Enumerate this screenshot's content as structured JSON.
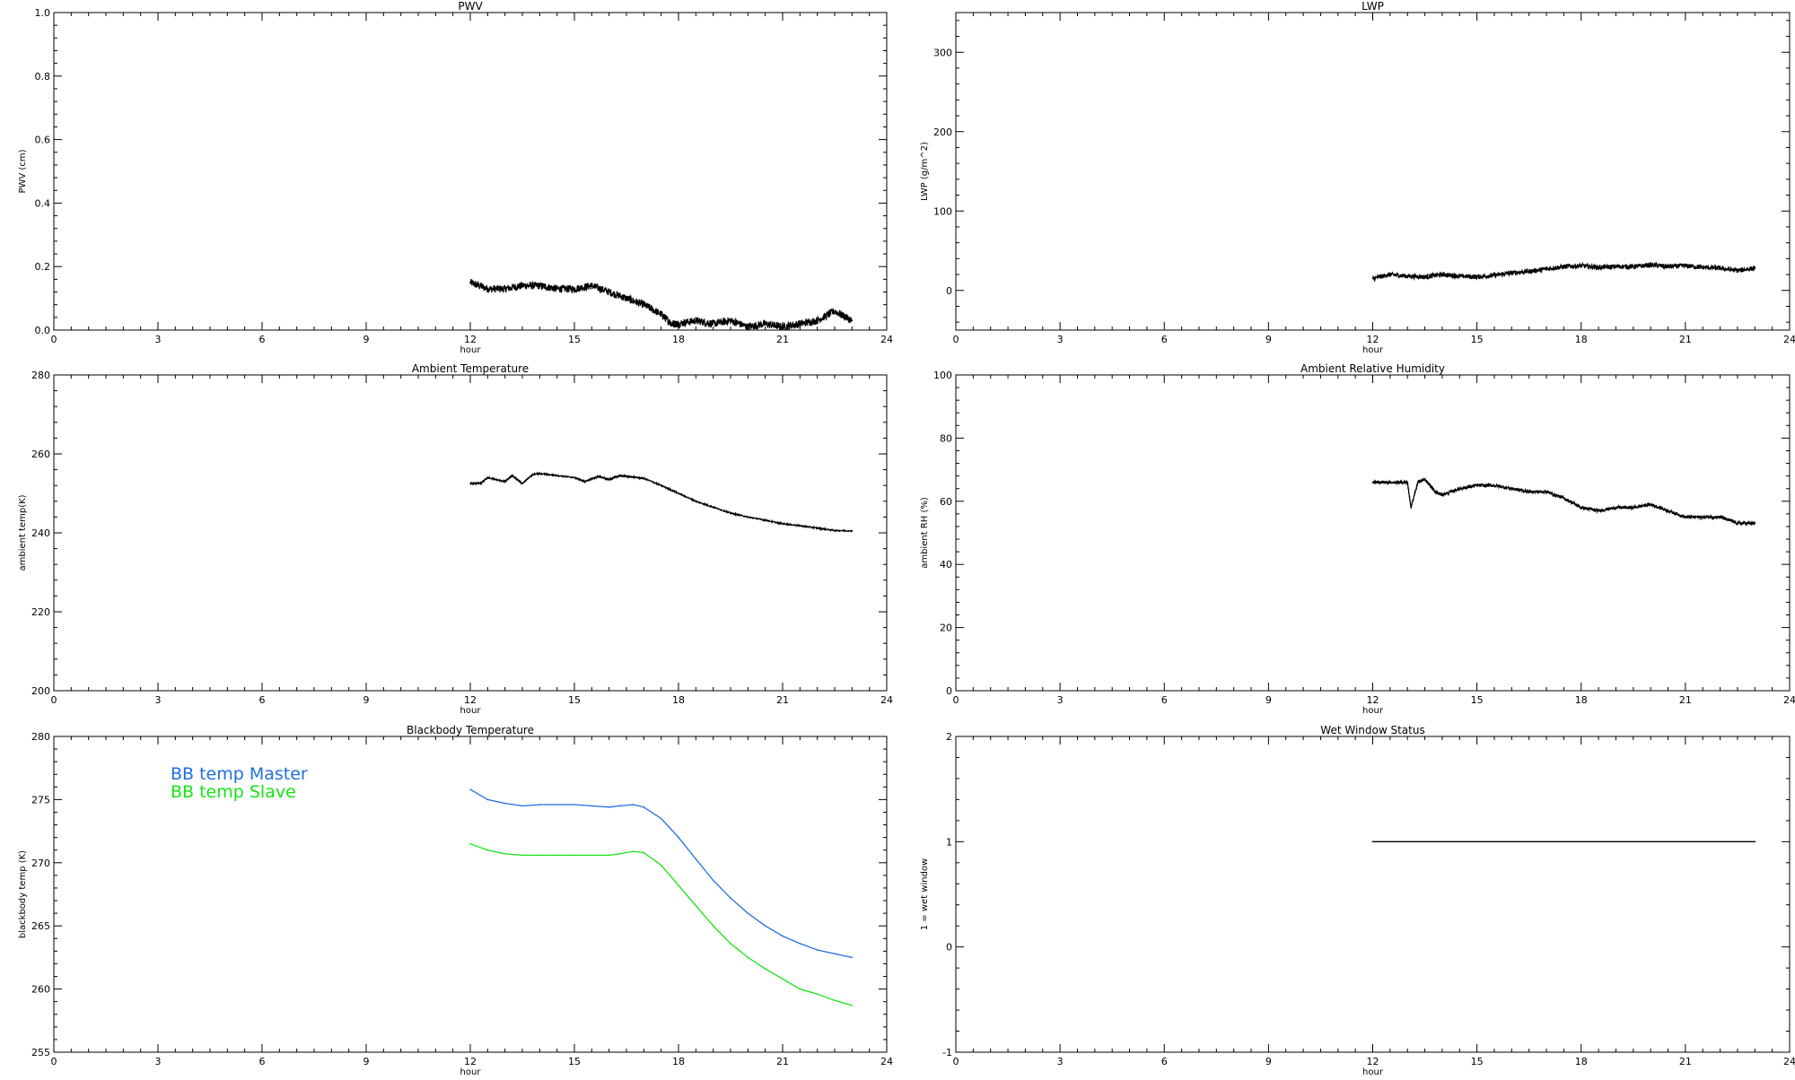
{
  "chart_data": [
    {
      "id": "pwv",
      "type": "line",
      "title": "PWV",
      "xlabel": "hour",
      "ylabel": "PWV (cm)",
      "xlim": [
        0,
        24
      ],
      "ylim": [
        0,
        1.0
      ],
      "xticks": [
        "0",
        "3",
        "6",
        "9",
        "12",
        "15",
        "18",
        "21",
        "24"
      ],
      "yticks": [
        "0.0",
        "0.2",
        "0.4",
        "0.6",
        "0.8",
        "1.0"
      ],
      "grid": false,
      "series": [
        {
          "color": "#000000",
          "noise": 0.012,
          "x": [
            12.0,
            12.5,
            13.0,
            13.5,
            14.0,
            14.5,
            15.0,
            15.5,
            16.0,
            16.5,
            17.0,
            17.5,
            17.8,
            18.0,
            18.5,
            19.0,
            19.5,
            20.0,
            20.5,
            21.0,
            21.5,
            22.0,
            22.5,
            23.0
          ],
          "y": [
            0.15,
            0.13,
            0.13,
            0.14,
            0.14,
            0.13,
            0.13,
            0.14,
            0.12,
            0.1,
            0.08,
            0.05,
            0.02,
            0.02,
            0.03,
            0.02,
            0.03,
            0.01,
            0.02,
            0.01,
            0.02,
            0.03,
            0.06,
            0.03
          ]
        }
      ]
    },
    {
      "id": "lwp",
      "type": "line",
      "title": "LWP",
      "xlabel": "hour",
      "ylabel": "LWP (g/m^2)",
      "xlim": [
        0,
        24
      ],
      "ylim": [
        -50,
        350
      ],
      "xticks": [
        "0",
        "3",
        "6",
        "9",
        "12",
        "15",
        "18",
        "21",
        "24"
      ],
      "yticks": [
        "0",
        "100",
        "200",
        "300"
      ],
      "ytick_values": [
        0,
        100,
        200,
        300
      ],
      "grid": false,
      "series": [
        {
          "color": "#000000",
          "noise": 3,
          "x": [
            12.0,
            12.5,
            13.0,
            13.5,
            14.0,
            14.5,
            15.0,
            15.5,
            16.0,
            16.5,
            17.0,
            17.5,
            18.0,
            18.5,
            19.0,
            19.5,
            20.0,
            20.5,
            21.0,
            21.5,
            22.0,
            22.5,
            23.0
          ],
          "y": [
            15,
            20,
            18,
            17,
            20,
            18,
            17,
            19,
            22,
            24,
            27,
            30,
            31,
            29,
            30,
            30,
            32,
            30,
            31,
            29,
            28,
            25,
            28
          ]
        }
      ]
    },
    {
      "id": "ambient-temp",
      "type": "line",
      "title": "Ambient Temperature",
      "xlabel": "hour",
      "ylabel": "ambient temp(K)",
      "xlim": [
        0,
        24
      ],
      "ylim": [
        200,
        280
      ],
      "xticks": [
        "0",
        "3",
        "6",
        "9",
        "12",
        "15",
        "18",
        "21",
        "24"
      ],
      "yticks": [
        "200",
        "220",
        "240",
        "260",
        "280"
      ],
      "grid": false,
      "series": [
        {
          "color": "#000000",
          "noise": 0.15,
          "x": [
            12.0,
            12.3,
            12.5,
            13.0,
            13.2,
            13.5,
            13.8,
            14.0,
            14.5,
            15.0,
            15.3,
            15.7,
            16.0,
            16.3,
            16.6,
            17.0,
            17.5,
            18.0,
            18.5,
            19.0,
            19.5,
            20.0,
            20.5,
            21.0,
            21.5,
            22.0,
            22.5,
            23.0
          ],
          "y": [
            252.5,
            252.5,
            254.0,
            253.0,
            254.5,
            252.5,
            254.8,
            255.0,
            254.5,
            254.0,
            253.0,
            254.3,
            253.5,
            254.5,
            254.2,
            253.8,
            252.0,
            250.0,
            248.0,
            246.5,
            245.0,
            244.0,
            243.2,
            242.3,
            241.8,
            241.2,
            240.6,
            240.5
          ]
        }
      ]
    },
    {
      "id": "ambient-rh",
      "type": "line",
      "title": "Ambient Relative Humidity",
      "xlabel": "hour",
      "ylabel": "ambient RH (%)",
      "xlim": [
        0,
        24
      ],
      "ylim": [
        0,
        100
      ],
      "xticks": [
        "0",
        "3",
        "6",
        "9",
        "12",
        "15",
        "18",
        "21",
        "24"
      ],
      "yticks": [
        "0",
        "20",
        "40",
        "60",
        "80",
        "100"
      ],
      "grid": false,
      "series": [
        {
          "color": "#000000",
          "noise": 0.5,
          "x": [
            12.0,
            12.5,
            13.0,
            13.1,
            13.3,
            13.5,
            13.8,
            14.0,
            14.5,
            15.0,
            15.5,
            16.0,
            16.5,
            17.0,
            17.5,
            18.0,
            18.5,
            19.0,
            19.5,
            20.0,
            20.5,
            21.0,
            21.5,
            22.0,
            22.5,
            23.0
          ],
          "y": [
            66,
            66,
            66,
            58,
            66,
            67,
            63,
            62,
            64,
            65,
            65,
            64,
            63,
            63,
            61,
            58,
            57,
            58,
            58,
            59,
            57,
            55,
            55,
            55,
            53,
            53
          ]
        }
      ]
    },
    {
      "id": "blackbody-temp",
      "type": "line",
      "title": "Blackbody Temperature",
      "xlabel": "hour",
      "ylabel": "blackbody temp (K)",
      "xlim": [
        0,
        24
      ],
      "ylim": [
        255,
        280
      ],
      "xticks": [
        "0",
        "3",
        "6",
        "9",
        "12",
        "15",
        "18",
        "21",
        "24"
      ],
      "yticks": [
        "255",
        "260",
        "265",
        "270",
        "275",
        "280"
      ],
      "grid": false,
      "legend": {
        "position": "top-left"
      },
      "series": [
        {
          "name": "BB temp Master",
          "color": "#1f6fe0",
          "noise": 0,
          "x": [
            12.0,
            12.5,
            13.0,
            13.5,
            14.0,
            14.5,
            15.0,
            15.5,
            16.0,
            16.3,
            16.7,
            17.0,
            17.5,
            18.0,
            18.5,
            19.0,
            19.5,
            20.0,
            20.5,
            21.0,
            21.5,
            22.0,
            22.5,
            23.0
          ],
          "y": [
            275.8,
            275.0,
            274.7,
            274.5,
            274.6,
            274.6,
            274.6,
            274.5,
            274.4,
            274.5,
            274.6,
            274.4,
            273.5,
            272.0,
            270.3,
            268.6,
            267.2,
            266.0,
            265.0,
            264.2,
            263.6,
            263.1,
            262.8,
            262.5
          ]
        },
        {
          "name": "BB temp Slave",
          "color": "#14e514",
          "noise": 0,
          "x": [
            12.0,
            12.5,
            13.0,
            13.5,
            14.0,
            14.5,
            15.0,
            15.5,
            16.0,
            16.3,
            16.7,
            17.0,
            17.5,
            18.0,
            18.5,
            19.0,
            19.5,
            20.0,
            20.5,
            21.0,
            21.5,
            22.0,
            22.5,
            23.0
          ],
          "y": [
            271.5,
            271.0,
            270.7,
            270.6,
            270.6,
            270.6,
            270.6,
            270.6,
            270.6,
            270.7,
            270.9,
            270.8,
            269.8,
            268.2,
            266.6,
            265.0,
            263.6,
            262.5,
            261.6,
            260.8,
            260.0,
            259.6,
            259.1,
            258.7
          ]
        }
      ]
    },
    {
      "id": "wet-window",
      "type": "line",
      "title": "Wet Window Status",
      "xlabel": "hour",
      "ylabel": "1 = wet window",
      "xlim": [
        0,
        24
      ],
      "ylim": [
        -1,
        2
      ],
      "xticks": [
        "0",
        "3",
        "6",
        "9",
        "12",
        "15",
        "18",
        "21",
        "24"
      ],
      "yticks": [
        "-1",
        "0",
        "1",
        "2"
      ],
      "ytick_values": [
        -1,
        0,
        1,
        2
      ],
      "grid": false,
      "series": [
        {
          "color": "#000000",
          "noise": 0,
          "x": [
            12.0,
            23.0
          ],
          "y": [
            1,
            1
          ]
        }
      ]
    }
  ]
}
